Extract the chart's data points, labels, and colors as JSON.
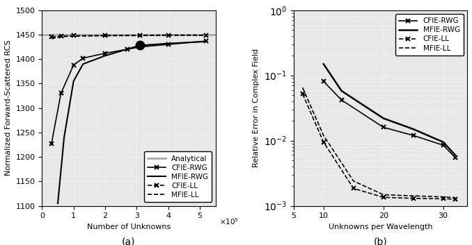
{
  "subplot_a": {
    "analytical_y": 1450.0,
    "cfie_rwg_x": [
      30000.0,
      60000.0,
      100000.0,
      130000.0,
      200000.0,
      270000.0,
      310000.0,
      400000.0,
      520000.0
    ],
    "cfie_rwg_y": [
      1227,
      1330,
      1388,
      1402,
      1412,
      1420,
      1425,
      1430,
      1437
    ],
    "mfie_rwg_x": [
      50000.0,
      70000.0,
      100000.0,
      130000.0,
      200000.0,
      310000.0,
      400000.0,
      520000.0
    ],
    "mfie_rwg_y": [
      1105,
      1240,
      1355,
      1390,
      1407,
      1428,
      1432,
      1436
    ],
    "mfie_rwg_bigdot_x": [
      310000.0
    ],
    "mfie_rwg_bigdot_y": [
      1428
    ],
    "cfie_ll_x": [
      30000.0,
      60000.0,
      100000.0,
      200000.0,
      310000.0,
      400000.0,
      520000.0
    ],
    "cfie_ll_y": [
      1445,
      1447,
      1448,
      1448,
      1449,
      1449,
      1449
    ],
    "mfie_ll_x": [
      30000.0,
      60000.0,
      100000.0,
      200000.0,
      310000.0,
      400000.0,
      520000.0
    ],
    "mfie_ll_y": [
      1442,
      1446,
      1447,
      1448,
      1448,
      1449,
      1449
    ],
    "xlim": [
      0,
      550000.0
    ],
    "ylim": [
      1100,
      1500
    ],
    "xlabel": "Number of Unknowns",
    "ylabel": "Normalized Forward-Scattered RCS",
    "yticks": [
      1100,
      1150,
      1200,
      1250,
      1300,
      1350,
      1400,
      1450,
      1500
    ],
    "xticks": [
      0,
      100000.0,
      200000.0,
      300000.0,
      400000.0,
      500000.0
    ],
    "xticklabels": [
      "0",
      "1",
      "2",
      "3",
      "4",
      "5"
    ],
    "label_a": "(a)"
  },
  "subplot_b": {
    "cfie_rwg_x": [
      10,
      13,
      20,
      25,
      30,
      32
    ],
    "cfie_rwg_y": [
      0.081,
      0.042,
      0.016,
      0.012,
      0.0085,
      0.0055
    ],
    "mfie_rwg_x": [
      10,
      13,
      20,
      25,
      30,
      32
    ],
    "mfie_rwg_y": [
      0.15,
      0.058,
      0.022,
      0.015,
      0.0095,
      0.006
    ],
    "cfie_ll_x": [
      6.5,
      10,
      15,
      20,
      25,
      30,
      32
    ],
    "cfie_ll_y": [
      0.052,
      0.0095,
      0.00185,
      0.00135,
      0.0013,
      0.00128,
      0.00127
    ],
    "mfie_ll_x": [
      6.5,
      10,
      15,
      20,
      25,
      30,
      32
    ],
    "mfie_ll_y": [
      0.065,
      0.012,
      0.0024,
      0.00148,
      0.00142,
      0.00137,
      0.00133
    ],
    "xlim": [
      5,
      34
    ],
    "ylim": [
      0.001,
      1.0
    ],
    "xlabel": "Unknowns per Wavelength",
    "ylabel": "Relative Error in Complex Field",
    "xticks": [
      5,
      10,
      20,
      30
    ],
    "xticklabels": [
      "5",
      "10",
      "20",
      "30"
    ],
    "label_b": "(b)"
  },
  "bg_color": "#e8e8e8",
  "grid_color": "white",
  "analytical_color": "#aaaaaa",
  "line_color": "black",
  "fontsize_label": 8,
  "fontsize_tick": 8,
  "fontsize_caption": 10
}
